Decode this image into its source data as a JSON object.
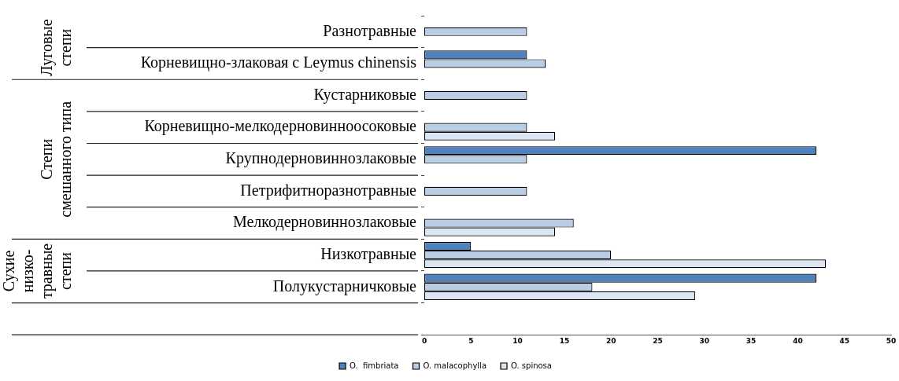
{
  "chart_data": {
    "type": "bar",
    "orientation": "horizontal",
    "categories": [
      "Разнотравные",
      "Корневищно-злаковая с Leymus chinensis",
      "Кустарниковые",
      "Корневищно-мелкодерновинноосоковые",
      "Крупнодерновиннозлаковые",
      "Петрифитноразнотравные",
      "Мелкодерновиннозлаковые",
      "Низкотравные",
      "Полукустарничковые",
      null
    ],
    "series": [
      {
        "name": "O.  fimbriata",
        "color": "#4f81bd",
        "values": [
          null,
          11,
          null,
          null,
          42,
          null,
          null,
          5,
          42,
          null
        ]
      },
      {
        "name": "O. malacophylla",
        "color": "#b9cde5",
        "values": [
          11,
          13,
          11,
          11,
          11,
          11,
          16,
          20,
          18,
          null
        ]
      },
      {
        "name": "O. spinosa",
        "color": "#dce6f2",
        "values": [
          null,
          null,
          null,
          14,
          null,
          null,
          14,
          43,
          29,
          null
        ]
      }
    ],
    "xlim": [
      0,
      50
    ],
    "xticks": [
      0,
      5,
      10,
      15,
      20,
      25,
      30,
      35,
      40,
      45,
      50
    ],
    "annotations": [
      "Луговые\nстепи",
      "Степи\nсмешанного типа",
      "Сухие\nнизко-\nтравные\nстепи"
    ],
    "grid": false,
    "legend": "bottom"
  }
}
